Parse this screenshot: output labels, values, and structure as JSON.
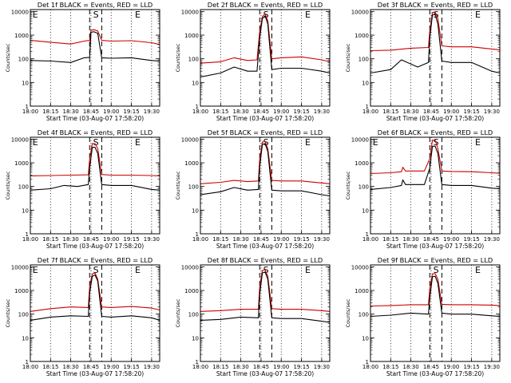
{
  "panel_grid": {
    "rows": 3,
    "cols": 3
  },
  "chart_data": [
    {
      "type": "line",
      "title": "Det 1f BLACK = Events, RED = LLD",
      "ylabel": "Counts/sec",
      "xlabel": "Start Time (03-Aug-07 17:58:20)",
      "x_ticks": [
        "18:00",
        "18:15",
        "18:30",
        "18:45",
        "19:00",
        "19:15",
        "19:30"
      ],
      "y_ticks": [
        "1",
        "10",
        "100",
        "1000",
        "10000"
      ],
      "ylim": [
        1,
        12000
      ],
      "y_scale": "log",
      "grid": "dotted vertical",
      "markers": [
        "E",
        "S",
        "E"
      ],
      "series": [
        {
          "color": "#cc0000",
          "x": [
            "18:00",
            "18:15",
            "18:30",
            "18:40",
            "18:44",
            "18:45",
            "18:47",
            "18:50",
            "18:53",
            "19:00",
            "19:15",
            "19:30",
            "19:36"
          ],
          "values": [
            600,
            500,
            420,
            560,
            600,
            1600,
            1700,
            1500,
            600,
            560,
            580,
            480,
            400
          ]
        },
        {
          "color": "#000000",
          "x": [
            "18:00",
            "18:15",
            "18:30",
            "18:40",
            "18:44",
            "18:45",
            "18:47",
            "18:50",
            "18:53",
            "19:00",
            "19:15",
            "19:30",
            "19:36"
          ],
          "values": [
            85,
            80,
            70,
            110,
            115,
            1300,
            1400,
            1200,
            110,
            105,
            110,
            85,
            80
          ]
        }
      ]
    },
    {
      "type": "line",
      "title": "Det 2f BLACK = Events, RED = LLD",
      "ylabel": "Counts/sec",
      "xlabel": "Start Time (03-Aug-07 17:58:20)",
      "x_ticks": [
        "18:00",
        "18:15",
        "18:30",
        "18:45",
        "19:00",
        "19:15",
        "19:30"
      ],
      "y_ticks": [
        "1",
        "10",
        "100",
        "1000",
        "10000"
      ],
      "ylim": [
        1,
        12000
      ],
      "y_scale": "log",
      "grid": "dotted vertical",
      "markers": [
        "S",
        "E"
      ],
      "series": [
        {
          "color": "#cc0000",
          "x": [
            "18:00",
            "18:15",
            "18:25",
            "18:35",
            "18:42",
            "18:44",
            "18:46",
            "18:48",
            "18:50",
            "18:53",
            "19:00",
            "19:15",
            "19:30",
            "19:36"
          ],
          "values": [
            65,
            75,
            110,
            85,
            90,
            1500,
            6000,
            8000,
            4000,
            100,
            110,
            120,
            90,
            75
          ]
        },
        {
          "color": "#000000",
          "x": [
            "18:00",
            "18:15",
            "18:25",
            "18:35",
            "18:42",
            "18:44",
            "18:46",
            "18:48",
            "18:50",
            "18:53",
            "19:00",
            "19:15",
            "19:30",
            "19:36"
          ],
          "values": [
            17,
            25,
            45,
            30,
            30,
            800,
            5000,
            6500,
            3000,
            35,
            40,
            40,
            30,
            25
          ]
        }
      ]
    },
    {
      "type": "line",
      "title": "Det 3f BLACK = Events, RED = LLD",
      "ylabel": "Counts/sec",
      "xlabel": "Start Time (03-Aug-07 17:58:20)",
      "x_ticks": [
        "18:00",
        "18:15",
        "18:30",
        "18:45",
        "19:00",
        "19:15",
        "19:30"
      ],
      "y_ticks": [
        "1",
        "10",
        "100",
        "1000",
        "10000"
      ],
      "ylim": [
        1,
        12000
      ],
      "y_scale": "log",
      "grid": "dotted vertical",
      "markers": [
        "S",
        "E"
      ],
      "series": [
        {
          "color": "#cc0000",
          "x": [
            "18:00",
            "18:15",
            "18:30",
            "18:43",
            "18:44",
            "18:46",
            "18:48",
            "18:50",
            "18:53",
            "19:00",
            "19:15",
            "19:30",
            "19:36"
          ],
          "values": [
            220,
            230,
            280,
            300,
            1500,
            9000,
            9500,
            5000,
            350,
            320,
            320,
            260,
            240
          ]
        },
        {
          "color": "#000000",
          "x": [
            "18:00",
            "18:15",
            "18:23",
            "18:35",
            "18:43",
            "18:44",
            "18:46",
            "18:48",
            "18:50",
            "18:53",
            "19:00",
            "19:15",
            "19:30",
            "19:36"
          ],
          "values": [
            25,
            35,
            90,
            45,
            70,
            800,
            7000,
            7500,
            3000,
            80,
            70,
            70,
            30,
            25
          ]
        }
      ]
    },
    {
      "type": "line",
      "title": "Det 4f BLACK = Events, RED = LLD",
      "ylabel": "Counts/sec",
      "xlabel": "Start Time (03-Aug-07 17:58:20)",
      "x_ticks": [
        "18:00",
        "18:15",
        "18:30",
        "18:45",
        "19:00",
        "19:15",
        "19:30"
      ],
      "y_ticks": [
        "1",
        "10",
        "100",
        "1000",
        "10000"
      ],
      "ylim": [
        1,
        12000
      ],
      "y_scale": "log",
      "grid": "dotted vertical",
      "markers": [
        "E",
        "S",
        "E"
      ],
      "series": [
        {
          "color": "#cc0000",
          "x": [
            "18:00",
            "18:15",
            "18:30",
            "18:43",
            "18:44",
            "18:46",
            "18:48",
            "18:50",
            "18:53",
            "19:00",
            "19:15",
            "19:30",
            "19:36"
          ],
          "values": [
            280,
            290,
            300,
            310,
            1500,
            6500,
            6500,
            4000,
            320,
            300,
            300,
            290,
            280
          ]
        },
        {
          "color": "#000000",
          "x": [
            "18:00",
            "18:15",
            "18:25",
            "18:35",
            "18:43",
            "18:44",
            "18:46",
            "18:48",
            "18:50",
            "18:53",
            "19:00",
            "19:15",
            "19:30",
            "19:36"
          ],
          "values": [
            70,
            80,
            110,
            100,
            120,
            600,
            4500,
            4500,
            2500,
            120,
            110,
            110,
            75,
            70
          ]
        }
      ]
    },
    {
      "type": "line",
      "title": "Det 5f BLACK = Events, RED = LLD",
      "ylabel": "Counts/sec",
      "xlabel": "Start Time (03-Aug-07 17:58:20)",
      "x_ticks": [
        "18:00",
        "18:15",
        "18:30",
        "18:45",
        "19:00",
        "19:15",
        "19:30"
      ],
      "y_ticks": [
        "1",
        "10",
        "100",
        "1000",
        "10000"
      ],
      "ylim": [
        1,
        12000
      ],
      "y_scale": "log",
      "grid": "dotted vertical",
      "markers": [
        "S",
        "E"
      ],
      "series": [
        {
          "color": "#cc0000",
          "x": [
            "18:00",
            "18:15",
            "18:25",
            "18:35",
            "18:43",
            "18:44",
            "18:46",
            "18:48",
            "18:50",
            "18:53",
            "19:00",
            "19:15",
            "19:30",
            "19:36"
          ],
          "values": [
            130,
            150,
            180,
            160,
            170,
            1500,
            7500,
            8000,
            4000,
            180,
            170,
            170,
            140,
            130
          ]
        },
        {
          "color": "#000000",
          "x": [
            "18:00",
            "18:15",
            "18:25",
            "18:35",
            "18:43",
            "18:44",
            "18:46",
            "18:48",
            "18:50",
            "18:53",
            "19:00",
            "19:15",
            "19:30",
            "19:36"
          ],
          "values": [
            45,
            60,
            90,
            70,
            75,
            700,
            6000,
            6500,
            3000,
            70,
            65,
            65,
            45,
            40
          ]
        }
      ]
    },
    {
      "type": "line",
      "title": "Det 6f BLACK = Events, RED = LLD",
      "ylabel": "Counts/sec",
      "xlabel": "Start Time (03-Aug-07 17:58:20)",
      "x_ticks": [
        "18:00",
        "18:15",
        "18:30",
        "18:45",
        "19:00",
        "19:15",
        "19:30"
      ],
      "y_ticks": [
        "1",
        "10",
        "100",
        "1000",
        "10000"
      ],
      "ylim": [
        1,
        12000
      ],
      "y_scale": "log",
      "grid": "dotted vertical",
      "markers": [
        "E",
        "S",
        "E"
      ],
      "series": [
        {
          "color": "#cc0000",
          "x": [
            "18:00",
            "18:15",
            "18:23",
            "18:24",
            "18:26",
            "18:40",
            "18:44",
            "18:46",
            "18:48",
            "18:50",
            "18:53",
            "19:00",
            "19:15",
            "19:30",
            "19:36"
          ],
          "values": [
            350,
            380,
            420,
            650,
            450,
            450,
            1500,
            9000,
            9000,
            4000,
            450,
            430,
            420,
            380,
            360
          ]
        },
        {
          "color": "#000000",
          "x": [
            "18:00",
            "18:15",
            "18:23",
            "18:24",
            "18:26",
            "18:40",
            "18:44",
            "18:46",
            "18:48",
            "18:50",
            "18:53",
            "19:00",
            "19:15",
            "19:30",
            "19:36"
          ],
          "values": [
            75,
            90,
            110,
            190,
            120,
            120,
            600,
            5000,
            5000,
            2500,
            120,
            110,
            110,
            85,
            80
          ]
        }
      ]
    },
    {
      "type": "line",
      "title": "Det 7f BLACK = Events, RED = LLD",
      "ylabel": "Counts/sec",
      "xlabel": "Start Time (03-Aug-07 17:58:20)",
      "x_ticks": [
        "18:00",
        "18:15",
        "18:30",
        "18:45",
        "19:00",
        "19:15",
        "19:30"
      ],
      "y_ticks": [
        "1",
        "10",
        "100",
        "1000",
        "10000"
      ],
      "ylim": [
        1,
        12000
      ],
      "y_scale": "log",
      "grid": "dotted vertical",
      "markers": [
        "E",
        "S",
        "E"
      ],
      "series": [
        {
          "color": "#cc0000",
          "x": [
            "18:00",
            "18:15",
            "18:30",
            "18:43",
            "18:44",
            "18:46",
            "18:48",
            "18:50",
            "18:53",
            "19:00",
            "19:15",
            "19:30",
            "19:36"
          ],
          "values": [
            130,
            170,
            200,
            190,
            1500,
            5000,
            5500,
            3000,
            200,
            190,
            210,
            180,
            150
          ]
        },
        {
          "color": "#000000",
          "x": [
            "18:00",
            "18:15",
            "18:30",
            "18:43",
            "18:44",
            "18:46",
            "18:48",
            "18:50",
            "18:53",
            "19:00",
            "19:15",
            "19:30",
            "19:36"
          ],
          "values": [
            55,
            75,
            85,
            80,
            800,
            4000,
            4500,
            2500,
            80,
            75,
            85,
            70,
            55
          ]
        }
      ]
    },
    {
      "type": "line",
      "title": "Det 8f BLACK = Events, RED = LLD",
      "ylabel": "Counts/sec",
      "xlabel": "Start Time (03-Aug-07 17:58:20)",
      "x_ticks": [
        "18:00",
        "18:15",
        "18:30",
        "18:45",
        "19:00",
        "19:15",
        "19:30"
      ],
      "y_ticks": [
        "1",
        "10",
        "100",
        "1000",
        "10000"
      ],
      "ylim": [
        1,
        12000
      ],
      "y_scale": "log",
      "grid": "dotted vertical",
      "markers": [
        "S",
        "E"
      ],
      "series": [
        {
          "color": "#cc0000",
          "x": [
            "18:00",
            "18:15",
            "18:30",
            "18:43",
            "18:44",
            "18:46",
            "18:48",
            "18:50",
            "18:53",
            "19:00",
            "19:15",
            "19:30",
            "19:36"
          ],
          "values": [
            130,
            140,
            160,
            160,
            1500,
            7000,
            7500,
            4000,
            170,
            160,
            160,
            140,
            130
          ]
        },
        {
          "color": "#000000",
          "x": [
            "18:00",
            "18:15",
            "18:30",
            "18:43",
            "18:44",
            "18:46",
            "18:48",
            "18:50",
            "18:53",
            "19:00",
            "19:15",
            "19:30",
            "19:36"
          ],
          "values": [
            55,
            60,
            75,
            70,
            700,
            5500,
            6000,
            3000,
            70,
            65,
            65,
            50,
            45
          ]
        }
      ]
    },
    {
      "type": "line",
      "title": "Det 9f BLACK = Events, RED = LLD",
      "ylabel": "Counts/sec",
      "xlabel": "Start Time (03-Aug-07 17:58:20)",
      "x_ticks": [
        "18:00",
        "18:15",
        "18:30",
        "18:45",
        "19:00",
        "19:15",
        "19:30"
      ],
      "y_ticks": [
        "1",
        "10",
        "100",
        "1000",
        "10000"
      ],
      "ylim": [
        1,
        12000
      ],
      "y_scale": "log",
      "grid": "dotted vertical",
      "markers": [
        "S",
        "E"
      ],
      "series": [
        {
          "color": "#cc0000",
          "x": [
            "18:00",
            "18:15",
            "18:30",
            "18:43",
            "18:44",
            "18:46",
            "18:48",
            "18:50",
            "18:53",
            "19:00",
            "19:15",
            "19:30",
            "19:36"
          ],
          "values": [
            220,
            230,
            250,
            250,
            1200,
            5000,
            5200,
            3000,
            260,
            250,
            250,
            240,
            230
          ]
        },
        {
          "color": "#000000",
          "x": [
            "18:00",
            "18:15",
            "18:30",
            "18:43",
            "18:44",
            "18:46",
            "18:48",
            "18:50",
            "18:53",
            "19:00",
            "19:15",
            "19:30",
            "19:36"
          ],
          "values": [
            80,
            90,
            110,
            100,
            500,
            3800,
            4000,
            2000,
            110,
            100,
            100,
            85,
            80
          ]
        }
      ]
    }
  ]
}
